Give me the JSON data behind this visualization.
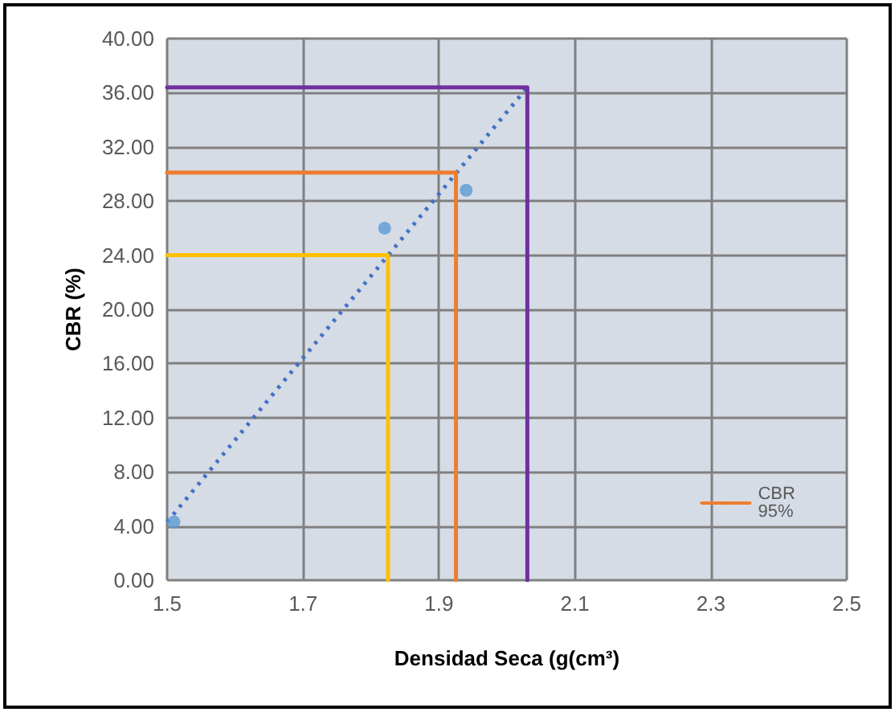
{
  "chart_data": {
    "type": "scatter",
    "xlabel": "Densidad Seca (g(cm³)",
    "ylabel": "CBR (%)",
    "xlim": [
      1.5,
      2.5
    ],
    "xticks": [
      1.5,
      1.7,
      1.9,
      2.1,
      2.3,
      2.5
    ],
    "ylim": [
      0,
      40
    ],
    "yticks": [
      {
        "value": 0,
        "label": "0.00"
      },
      {
        "value": 4,
        "label": "4.00"
      },
      {
        "value": 8,
        "label": "8.00"
      },
      {
        "value": 12,
        "label": "12.00"
      },
      {
        "value": 16,
        "label": "16.00"
      },
      {
        "value": 20,
        "label": "20.00"
      },
      {
        "value": 24,
        "label": "24.00"
      },
      {
        "value": 28,
        "label": "28.00"
      },
      {
        "value": 32,
        "label": "32.00"
      },
      {
        "value": 36,
        "label": "36.00"
      },
      {
        "value": 40,
        "label": "40.00"
      }
    ],
    "grid": true,
    "legend": "bottom right",
    "series": [
      {
        "color": "#5b9bd5",
        "marker": "circle",
        "x": [
          1.51,
          1.82,
          1.94
        ],
        "values": [
          4.3,
          26,
          28.8
        ]
      },
      {
        "type": "line",
        "color": "#4472c4",
        "line_style": "dotted",
        "marker": "none",
        "x": [
          1.5,
          2.03
        ],
        "values": [
          4.3,
          36.4
        ]
      },
      {
        "type": "line",
        "color": "#ffc000",
        "line_style": "solid",
        "marker": "none",
        "x": [
          1.5,
          1.825,
          1.825
        ],
        "values": [
          24,
          24,
          0
        ]
      },
      {
        "type": "line",
        "name": "CBR 95%",
        "color": "#ed7d31",
        "line_style": "solid",
        "marker": "none",
        "x": [
          1.5,
          1.925,
          1.925
        ],
        "values": [
          30.1,
          30.1,
          0
        ]
      },
      {
        "type": "line",
        "color": "#7030a0",
        "line_style": "solid",
        "marker": "none",
        "x": [
          1.5,
          2.03,
          2.03
        ],
        "values": [
          36.4,
          36.4,
          0
        ]
      }
    ]
  }
}
